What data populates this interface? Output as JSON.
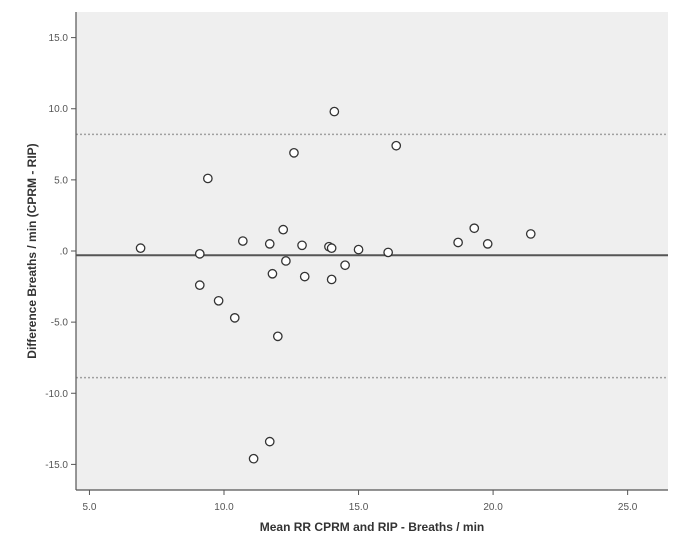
{
  "chart_data": {
    "type": "scatter",
    "xlabel": "Mean RR CPRM and RIP - Breaths / min",
    "ylabel": "Difference Breaths / min (CPRM - RIP)",
    "xlim": [
      4.5,
      26.5
    ],
    "ylim": [
      -16.8,
      16.8
    ],
    "x_ticks": [
      5.0,
      10.0,
      15.0,
      20.0,
      25.0
    ],
    "x_tick_labels": [
      "5.0",
      "10.0",
      "15.0",
      "20.0",
      "25.0"
    ],
    "y_ticks": [
      15.0,
      10.0,
      5.0,
      0.0,
      -5.0,
      -10.0,
      -15.0
    ],
    "y_tick_labels": [
      "15.0",
      "10.0",
      "5.0",
      ".0",
      "-5.0",
      "-10.0",
      "-15.0"
    ],
    "grid": false,
    "reference_lines": [
      {
        "y": -0.3,
        "style": "solid"
      },
      {
        "y": 8.2,
        "style": "dotted"
      },
      {
        "y": -8.9,
        "style": "dotted"
      }
    ],
    "points": [
      {
        "x": 6.9,
        "y": 0.2
      },
      {
        "x": 9.1,
        "y": -0.2
      },
      {
        "x": 9.1,
        "y": -2.4
      },
      {
        "x": 9.4,
        "y": 5.1
      },
      {
        "x": 9.8,
        "y": -3.5
      },
      {
        "x": 10.4,
        "y": -4.7
      },
      {
        "x": 10.7,
        "y": 0.7
      },
      {
        "x": 11.1,
        "y": -14.6
      },
      {
        "x": 11.7,
        "y": 0.5
      },
      {
        "x": 11.7,
        "y": -13.4
      },
      {
        "x": 11.8,
        "y": -1.6
      },
      {
        "x": 12.0,
        "y": -6.0
      },
      {
        "x": 12.2,
        "y": 1.5
      },
      {
        "x": 12.3,
        "y": -0.7
      },
      {
        "x": 12.6,
        "y": 6.9
      },
      {
        "x": 12.9,
        "y": 0.4
      },
      {
        "x": 13.0,
        "y": -1.8
      },
      {
        "x": 13.9,
        "y": 0.3
      },
      {
        "x": 14.0,
        "y": 0.2
      },
      {
        "x": 14.0,
        "y": -2.0
      },
      {
        "x": 14.1,
        "y": 9.8
      },
      {
        "x": 14.5,
        "y": -1.0
      },
      {
        "x": 15.0,
        "y": 0.1
      },
      {
        "x": 16.1,
        "y": -0.1
      },
      {
        "x": 16.4,
        "y": 7.4
      },
      {
        "x": 18.7,
        "y": 0.6
      },
      {
        "x": 19.3,
        "y": 1.6
      },
      {
        "x": 19.8,
        "y": 0.5
      },
      {
        "x": 21.4,
        "y": 1.2
      }
    ]
  },
  "colors": {
    "plot_background": "#efefef",
    "axis": "#555555",
    "mean_line": "#555555",
    "limit_line": "#a0a0a0",
    "marker_stroke": "#333333",
    "marker_fill": "#ffffff"
  }
}
